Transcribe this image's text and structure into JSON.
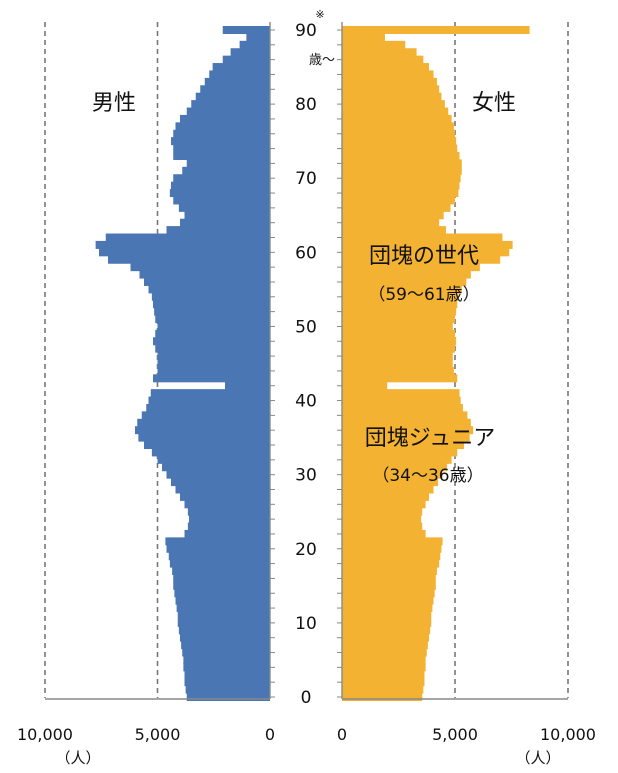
{
  "chart_data": {
    "type": "bar",
    "orientation": "horizontal",
    "subtype": "population-pyramid",
    "age_unit_label": "歳〜",
    "top_age_note": "※",
    "panels": {
      "male": {
        "label": "男性",
        "color": "#4a77b4",
        "xlim": [
          10000,
          0
        ],
        "ticks": [
          "10,000",
          "5,000",
          "0"
        ],
        "unit_label": "（人）"
      },
      "female": {
        "label": "女性",
        "color": "#f4b232",
        "xlim": [
          0,
          10000
        ],
        "ticks": [
          "0",
          "5,000",
          "10,000"
        ],
        "unit_label": "（人）"
      }
    },
    "y_axis": {
      "ylim": [
        0,
        90
      ],
      "ticks": [
        "0",
        "10",
        "20",
        "30",
        "40",
        "50",
        "60",
        "70",
        "80",
        "90"
      ]
    },
    "annotations": [
      {
        "title": "団塊の世代",
        "subtitle": "（59〜61歳）"
      },
      {
        "title": "団塊ジュニア",
        "subtitle": "（34〜36歳）"
      }
    ],
    "series": [
      {
        "name": "男性",
        "ages": [
          0,
          1,
          2,
          3,
          4,
          5,
          6,
          7,
          8,
          9,
          10,
          11,
          12,
          13,
          14,
          15,
          16,
          17,
          18,
          19,
          20,
          21,
          22,
          23,
          24,
          25,
          26,
          27,
          28,
          29,
          30,
          31,
          32,
          33,
          34,
          35,
          36,
          37,
          38,
          39,
          40,
          41,
          42,
          43,
          44,
          45,
          46,
          47,
          48,
          49,
          50,
          51,
          52,
          53,
          54,
          55,
          56,
          57,
          58,
          59,
          60,
          61,
          62,
          63,
          64,
          65,
          66,
          67,
          68,
          69,
          70,
          71,
          72,
          73,
          74,
          75,
          76,
          77,
          78,
          79,
          80,
          81,
          82,
          83,
          84,
          85,
          86,
          87,
          88,
          89,
          90
        ],
        "values": [
          3700,
          3750,
          3800,
          3800,
          3850,
          3850,
          3900,
          3950,
          4000,
          4050,
          4100,
          4100,
          4150,
          4200,
          4250,
          4300,
          4300,
          4350,
          4450,
          4500,
          4600,
          4650,
          3800,
          3650,
          3600,
          3650,
          3800,
          4000,
          4200,
          4400,
          4600,
          4800,
          5000,
          5250,
          5600,
          5850,
          6000,
          5900,
          5700,
          5500,
          5400,
          5300,
          2000,
          5200,
          5000,
          5000,
          5000,
          5100,
          5200,
          5100,
          5000,
          5100,
          5150,
          5200,
          5250,
          5400,
          5600,
          5800,
          6200,
          7200,
          7600,
          7750,
          7300,
          4600,
          4000,
          3800,
          4050,
          4300,
          4450,
          4400,
          4300,
          3900,
          3700,
          4300,
          4300,
          4400,
          4300,
          4200,
          4000,
          3700,
          3500,
          3300,
          3100,
          2900,
          2700,
          2550,
          2100,
          1750,
          1350,
          1050,
          2100
        ]
      },
      {
        "name": "女性",
        "ages": [
          0,
          1,
          2,
          3,
          4,
          5,
          6,
          7,
          8,
          9,
          10,
          11,
          12,
          13,
          14,
          15,
          16,
          17,
          18,
          19,
          20,
          21,
          22,
          23,
          24,
          25,
          26,
          27,
          28,
          29,
          30,
          31,
          32,
          33,
          34,
          35,
          36,
          37,
          38,
          39,
          40,
          41,
          42,
          43,
          44,
          45,
          46,
          47,
          48,
          49,
          50,
          51,
          52,
          53,
          54,
          55,
          56,
          57,
          58,
          59,
          60,
          61,
          62,
          63,
          64,
          65,
          66,
          67,
          68,
          69,
          70,
          71,
          72,
          73,
          74,
          75,
          76,
          77,
          78,
          79,
          80,
          81,
          82,
          83,
          84,
          85,
          86,
          87,
          88,
          89,
          90
        ],
        "values": [
          3550,
          3600,
          3650,
          3650,
          3700,
          3700,
          3750,
          3800,
          3850,
          3900,
          3950,
          3950,
          4000,
          4050,
          4100,
          4150,
          4150,
          4200,
          4300,
          4350,
          4400,
          4450,
          3700,
          3550,
          3500,
          3550,
          3700,
          3850,
          4050,
          4250,
          4450,
          4650,
          4850,
          5100,
          5400,
          5650,
          5800,
          5700,
          5550,
          5350,
          5250,
          5200,
          2000,
          5100,
          4950,
          4900,
          4900,
          5000,
          5050,
          5000,
          4900,
          5000,
          5050,
          5100,
          5150,
          5300,
          5500,
          5700,
          6100,
          7000,
          7400,
          7550,
          7100,
          4600,
          4300,
          4500,
          4800,
          5000,
          5150,
          5200,
          5250,
          5300,
          5300,
          5200,
          5100,
          5050,
          5000,
          4950,
          4850,
          4700,
          4550,
          4400,
          4300,
          4200,
          4050,
          3850,
          3600,
          3300,
          2800,
          1900,
          8300
        ]
      }
    ]
  }
}
